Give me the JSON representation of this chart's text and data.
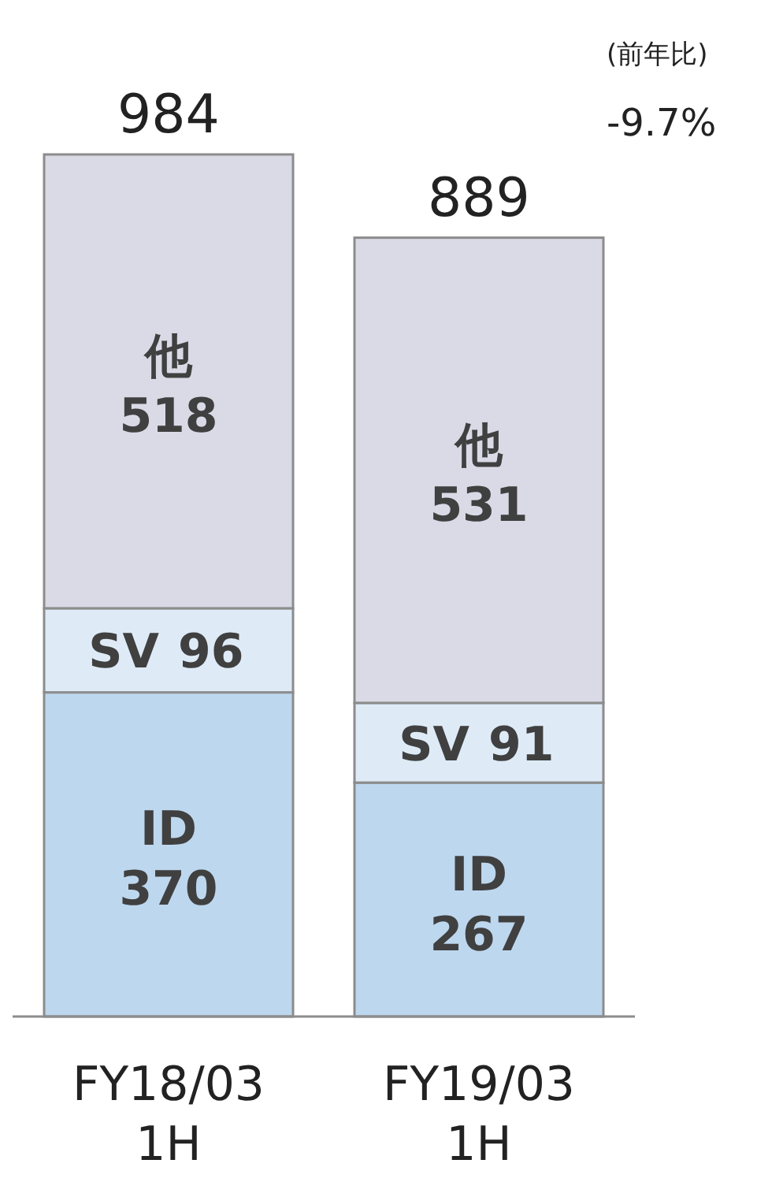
{
  "chart_data": {
    "type": "bar",
    "stacked": true,
    "categories": [
      "FY18/03 1H",
      "FY19/03 1H"
    ],
    "series": [
      {
        "name": "ID",
        "color": "#bdd7ee",
        "values": [
          370,
          267
        ]
      },
      {
        "name": "SV",
        "color": "#deebf7",
        "values": [
          96,
          91
        ]
      },
      {
        "name": "他",
        "color": "#d9dae6",
        "values": [
          518,
          531
        ]
      }
    ],
    "data_labels": true,
    "totals": [
      "984",
      "889"
    ],
    "legend": false,
    "annotations": [
      "(前年比)",
      "-9.7%"
    ]
  }
}
